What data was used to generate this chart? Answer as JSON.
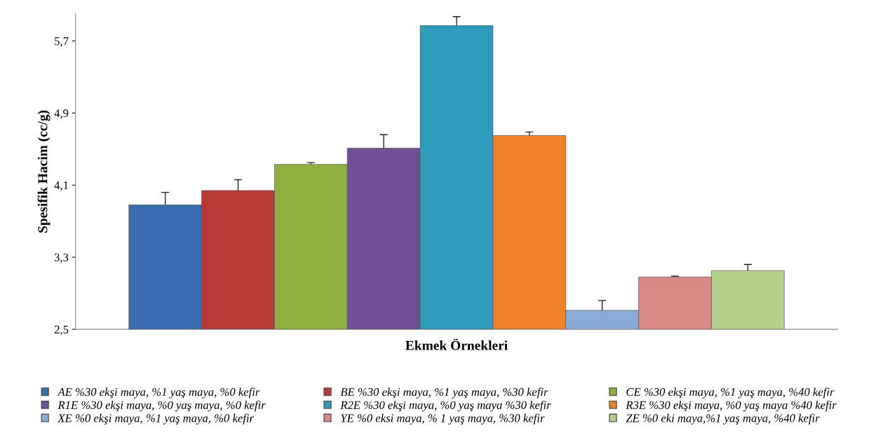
{
  "chart_data": {
    "type": "bar",
    "xlabel": "Ekmek Örnekleri",
    "ylabel": "Spesifik Hacim (cc/g)",
    "categories": [
      null
    ],
    "series": [
      {
        "name": "AE %30 ekşi maya, %1 yaş maya, %0 kefir",
        "color": "#3a6db0",
        "values": [
          3.88
        ],
        "errors": [
          0.14
        ]
      },
      {
        "name": "BE %30 ekşi maya, %1 yaş maya, %30 kefir",
        "color": "#b83a38",
        "values": [
          4.04
        ],
        "errors": [
          0.12
        ]
      },
      {
        "name": "CE %30 ekşi maya, %1 yaş maya, %40 kefir",
        "color": "#8db040",
        "values": [
          4.33
        ],
        "errors": [
          0.02
        ]
      },
      {
        "name": "R1E %30 ekşi maya, %0 yaş maya, %0 kefir",
        "color": "#6f5096",
        "values": [
          4.51
        ],
        "errors": [
          0.15
        ]
      },
      {
        "name": "R2E %30 ekşi maya, %0 yaş maya %30 kefir",
        "color": "#2f9cbc",
        "values": [
          5.87
        ],
        "errors": [
          0.1
        ]
      },
      {
        "name": "R3E %30 ekşi maya, %0 yaş maya %40 kefir",
        "color": "#ef8228",
        "values": [
          4.65
        ],
        "errors": [
          0.04
        ]
      },
      {
        "name": "XE %0 ekşi maya, %1 yaş maya, %0 kefir",
        "color": "#8cacd8",
        "values": [
          2.71
        ],
        "errors": [
          0.11
        ]
      },
      {
        "name": "YE %0 eksi maya, % 1 yaş maya, %30 kefir",
        "color": "#d88886",
        "values": [
          3.08
        ],
        "errors": [
          0.01
        ]
      },
      {
        "name": "ZE %0 eki maya,%1 yaş maya, %40 kefir",
        "color": "#b4d08c",
        "values": [
          3.15
        ],
        "errors": [
          0.07
        ]
      }
    ],
    "ylim": [
      2.5,
      6.0
    ],
    "yticks": [
      {
        "value": 2.5,
        "label": "2,5"
      },
      {
        "value": 3.3,
        "label": "3,3"
      },
      {
        "value": 4.1,
        "label": "4,1"
      },
      {
        "value": 4.9,
        "label": "4,9"
      },
      {
        "value": 5.7,
        "label": "5,7"
      }
    ],
    "grid": false,
    "legend": "bottom"
  }
}
